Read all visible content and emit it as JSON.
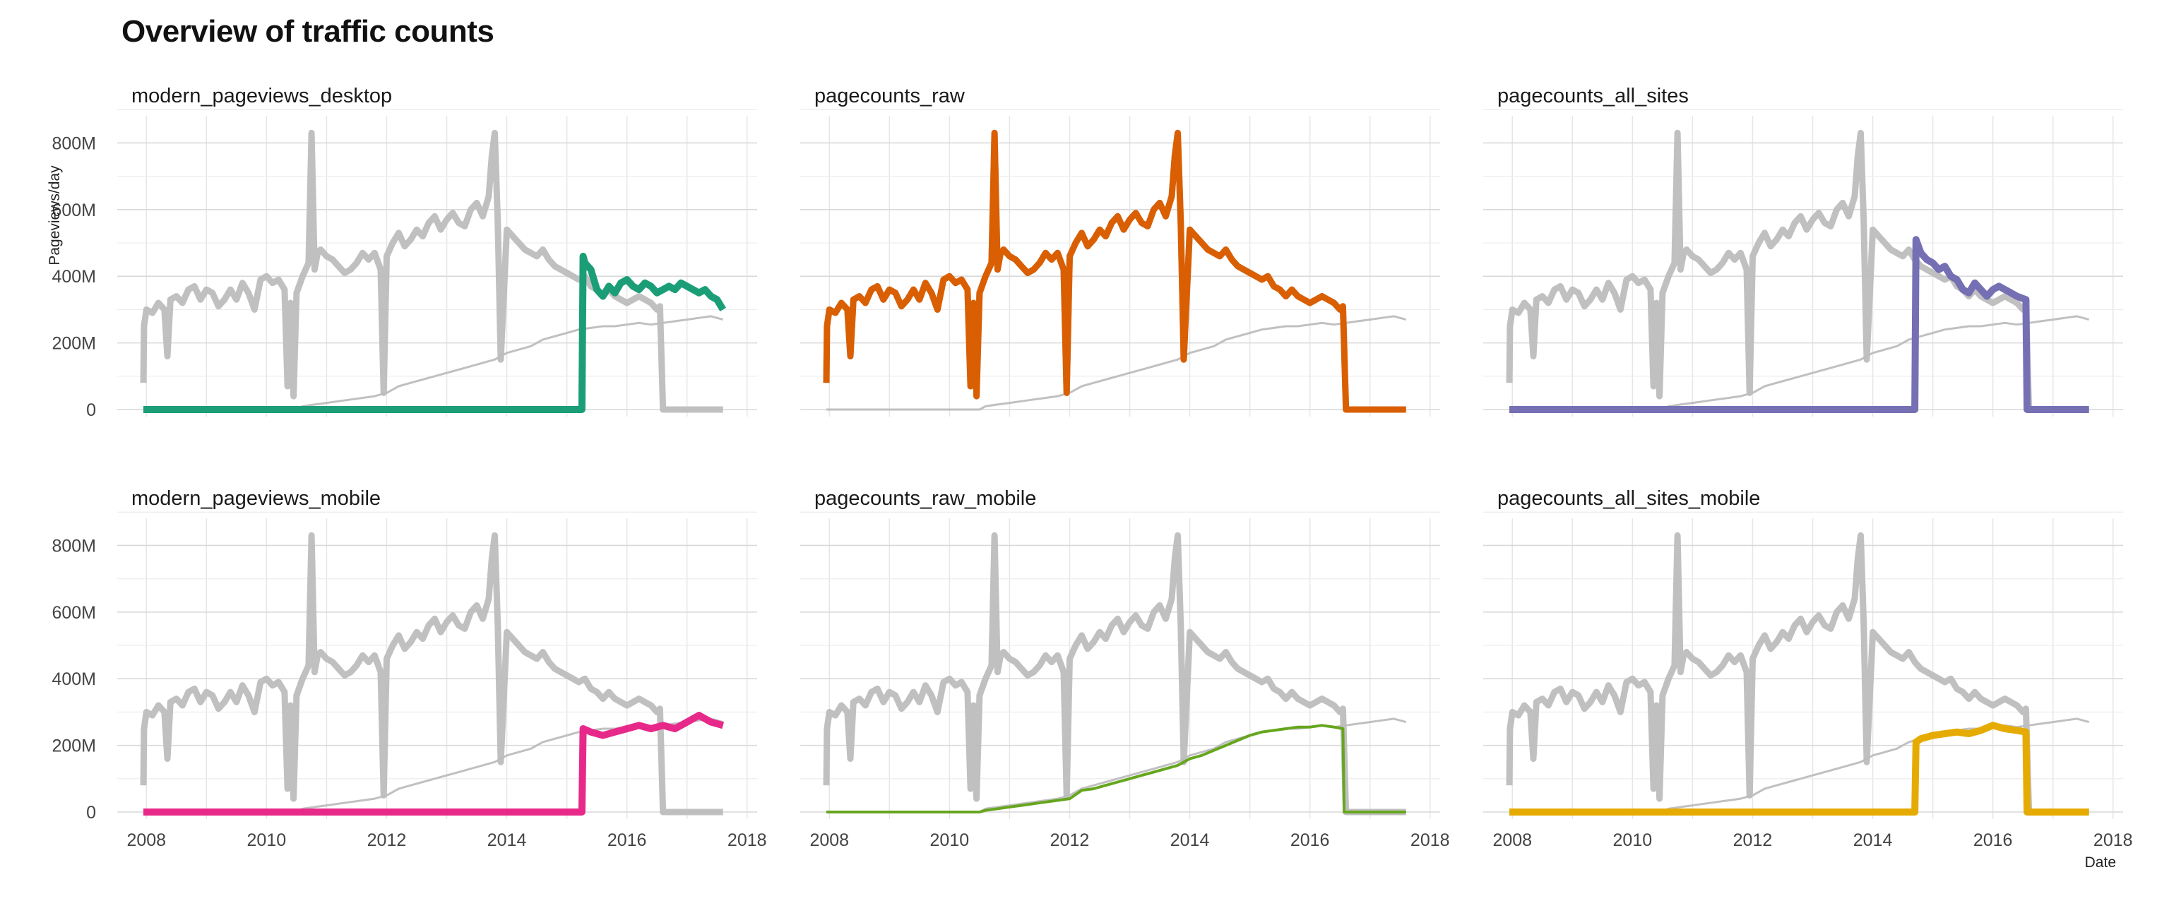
{
  "title": "Overview of traffic counts",
  "chart_data": {
    "type": "line",
    "title": "Overview of traffic counts",
    "xlabel": "Date",
    "ylabel": "Pageviews/day",
    "x_ticks": [
      "2008",
      "2010",
      "2012",
      "2014",
      "2016",
      "2018"
    ],
    "y_ticks": [
      "0",
      "200M",
      "400M",
      "600M",
      "800M"
    ],
    "xlim": [
      2007.75,
      2018.05
    ],
    "ylim": [
      0,
      890
    ],
    "y_unit": "M",
    "grid": true,
    "legend": "none",
    "background_color": "#bdbdbd",
    "facets": [
      {
        "name": "modern_pageviews_desktop",
        "series": "desktop",
        "color": "#1b9e77"
      },
      {
        "name": "pagecounts_raw",
        "series": "raw",
        "color": "#d95f02"
      },
      {
        "name": "pagecounts_all_sites",
        "series": "allsites",
        "color": "#7570b3"
      },
      {
        "name": "modern_pageviews_mobile",
        "series": "mobile",
        "color": "#e7298a"
      },
      {
        "name": "pagecounts_raw_mobile",
        "series": "rawmobile",
        "color": "#66a61e"
      },
      {
        "name": "pagecounts_all_sites_mobile",
        "series": "allsitesmobile",
        "color": "#e6ab02"
      }
    ],
    "series": [
      {
        "id": "raw",
        "x": [
          2007.95,
          2007.96,
          2008.0,
          2008.1,
          2008.2,
          2008.3,
          2008.35,
          2008.4,
          2008.5,
          2008.6,
          2008.7,
          2008.8,
          2008.9,
          2009.0,
          2009.1,
          2009.2,
          2009.3,
          2009.4,
          2009.5,
          2009.6,
          2009.7,
          2009.8,
          2009.9,
          2010.0,
          2010.1,
          2010.2,
          2010.3,
          2010.35,
          2010.4,
          2010.45,
          2010.5,
          2010.6,
          2010.7,
          2010.75,
          2010.8,
          2010.85,
          2010.9,
          2011.0,
          2011.1,
          2011.2,
          2011.3,
          2011.4,
          2011.5,
          2011.6,
          2011.7,
          2011.8,
          2011.9,
          2011.95,
          2012.0,
          2012.1,
          2012.2,
          2012.3,
          2012.4,
          2012.5,
          2012.6,
          2012.7,
          2012.8,
          2012.9,
          2013.0,
          2013.1,
          2013.2,
          2013.3,
          2013.4,
          2013.5,
          2013.6,
          2013.7,
          2013.75,
          2013.8,
          2013.85,
          2013.9,
          2014.0,
          2014.1,
          2014.2,
          2014.3,
          2014.4,
          2014.5,
          2014.6,
          2014.7,
          2014.8,
          2014.9,
          2015.0,
          2015.1,
          2015.2,
          2015.3,
          2015.4,
          2015.5,
          2015.6,
          2015.7,
          2015.8,
          2015.9,
          2016.0,
          2016.1,
          2016.2,
          2016.3,
          2016.4,
          2016.5,
          2016.55,
          2016.6,
          2017.6
        ],
        "values": [
          80,
          250,
          300,
          290,
          320,
          300,
          160,
          330,
          340,
          320,
          360,
          370,
          330,
          360,
          350,
          310,
          330,
          360,
          330,
          380,
          350,
          300,
          390,
          400,
          380,
          390,
          360,
          70,
          320,
          40,
          350,
          400,
          440,
          830,
          420,
          470,
          480,
          460,
          450,
          430,
          410,
          420,
          440,
          470,
          450,
          470,
          420,
          50,
          460,
          500,
          530,
          490,
          510,
          540,
          520,
          560,
          580,
          540,
          570,
          590,
          560,
          550,
          600,
          620,
          580,
          640,
          760,
          830,
          560,
          150,
          540,
          520,
          500,
          480,
          470,
          460,
          480,
          450,
          430,
          420,
          410,
          400,
          390,
          400,
          370,
          360,
          340,
          360,
          340,
          330,
          320,
          330,
          340,
          330,
          320,
          300,
          310,
          0,
          0
        ]
      },
      {
        "id": "allsites",
        "x": [
          2007.95,
          2008.0,
          2014.7,
          2014.72,
          2014.8,
          2014.9,
          2015.0,
          2015.1,
          2015.2,
          2015.3,
          2015.4,
          2015.5,
          2015.6,
          2015.7,
          2015.8,
          2015.9,
          2016.0,
          2016.1,
          2016.2,
          2016.3,
          2016.4,
          2016.55,
          2016.57,
          2017.6
        ],
        "values": [
          0,
          0,
          0,
          510,
          470,
          450,
          440,
          420,
          430,
          400,
          390,
          360,
          350,
          380,
          360,
          340,
          360,
          370,
          360,
          350,
          340,
          330,
          0,
          0
        ]
      },
      {
        "id": "desktop",
        "x": [
          2007.95,
          2008.0,
          2015.25,
          2015.27,
          2015.3,
          2015.4,
          2015.5,
          2015.6,
          2015.7,
          2015.8,
          2015.9,
          2016.0,
          2016.1,
          2016.2,
          2016.3,
          2016.4,
          2016.5,
          2016.6,
          2016.7,
          2016.8,
          2016.9,
          2017.0,
          2017.1,
          2017.2,
          2017.3,
          2017.4,
          2017.5,
          2017.6
        ],
        "values": [
          0,
          0,
          0,
          460,
          440,
          420,
          360,
          340,
          370,
          350,
          380,
          390,
          370,
          360,
          380,
          370,
          350,
          360,
          370,
          360,
          380,
          370,
          360,
          350,
          360,
          340,
          330,
          300
        ]
      },
      {
        "id": "mobile",
        "x": [
          2007.95,
          2008.0,
          2015.25,
          2015.27,
          2015.4,
          2015.6,
          2015.8,
          2016.0,
          2016.2,
          2016.4,
          2016.6,
          2016.8,
          2017.0,
          2017.2,
          2017.4,
          2017.6
        ],
        "values": [
          0,
          0,
          0,
          250,
          240,
          230,
          240,
          250,
          260,
          250,
          260,
          250,
          270,
          290,
          270,
          260
        ]
      },
      {
        "id": "rawmobile",
        "x": [
          2007.95,
          2008.0,
          2010.5,
          2010.6,
          2010.8,
          2011.0,
          2011.2,
          2011.4,
          2011.6,
          2011.8,
          2012.0,
          2012.2,
          2012.4,
          2012.6,
          2012.8,
          2013.0,
          2013.2,
          2013.4,
          2013.6,
          2013.8,
          2013.9,
          2014.0,
          2014.2,
          2014.4,
          2014.6,
          2014.8,
          2015.0,
          2015.2,
          2015.4,
          2015.6,
          2015.8,
          2016.0,
          2016.2,
          2016.4,
          2016.55,
          2016.57,
          2017.6
        ],
        "values": [
          0,
          0,
          0,
          5,
          10,
          15,
          20,
          25,
          30,
          35,
          40,
          65,
          70,
          80,
          90,
          100,
          110,
          120,
          130,
          140,
          150,
          160,
          170,
          185,
          200,
          215,
          230,
          240,
          245,
          250,
          255,
          255,
          260,
          255,
          250,
          0,
          0
        ]
      },
      {
        "id": "allsitesmobile",
        "x": [
          2007.95,
          2008.0,
          2014.7,
          2014.72,
          2014.8,
          2015.0,
          2015.2,
          2015.4,
          2015.6,
          2015.8,
          2016.0,
          2016.2,
          2016.4,
          2016.55,
          2016.57,
          2017.6
        ],
        "values": [
          0,
          0,
          0,
          210,
          220,
          230,
          235,
          240,
          235,
          245,
          260,
          250,
          245,
          240,
          0,
          0
        ]
      },
      {
        "id": "desktop_bg",
        "x": [
          2007.95,
          2008.0,
          2010.5,
          2010.6,
          2010.8,
          2011.0,
          2011.2,
          2011.4,
          2011.6,
          2011.8,
          2012.0,
          2012.2,
          2012.4,
          2012.6,
          2012.8,
          2013.0,
          2013.2,
          2013.4,
          2013.6,
          2013.8,
          2014.0,
          2014.2,
          2014.4,
          2014.6,
          2014.8,
          2015.0,
          2015.2,
          2015.4,
          2015.6,
          2015.8,
          2016.0,
          2016.2,
          2016.4,
          2016.6,
          2016.8,
          2017.0,
          2017.2,
          2017.4,
          2017.6
        ],
        "values": [
          0,
          0,
          0,
          10,
          15,
          20,
          25,
          30,
          35,
          40,
          50,
          70,
          80,
          90,
          100,
          110,
          120,
          130,
          140,
          150,
          170,
          180,
          190,
          210,
          220,
          230,
          240,
          245,
          250,
          250,
          255,
          260,
          255,
          260,
          265,
          270,
          275,
          280,
          270
        ]
      }
    ]
  }
}
